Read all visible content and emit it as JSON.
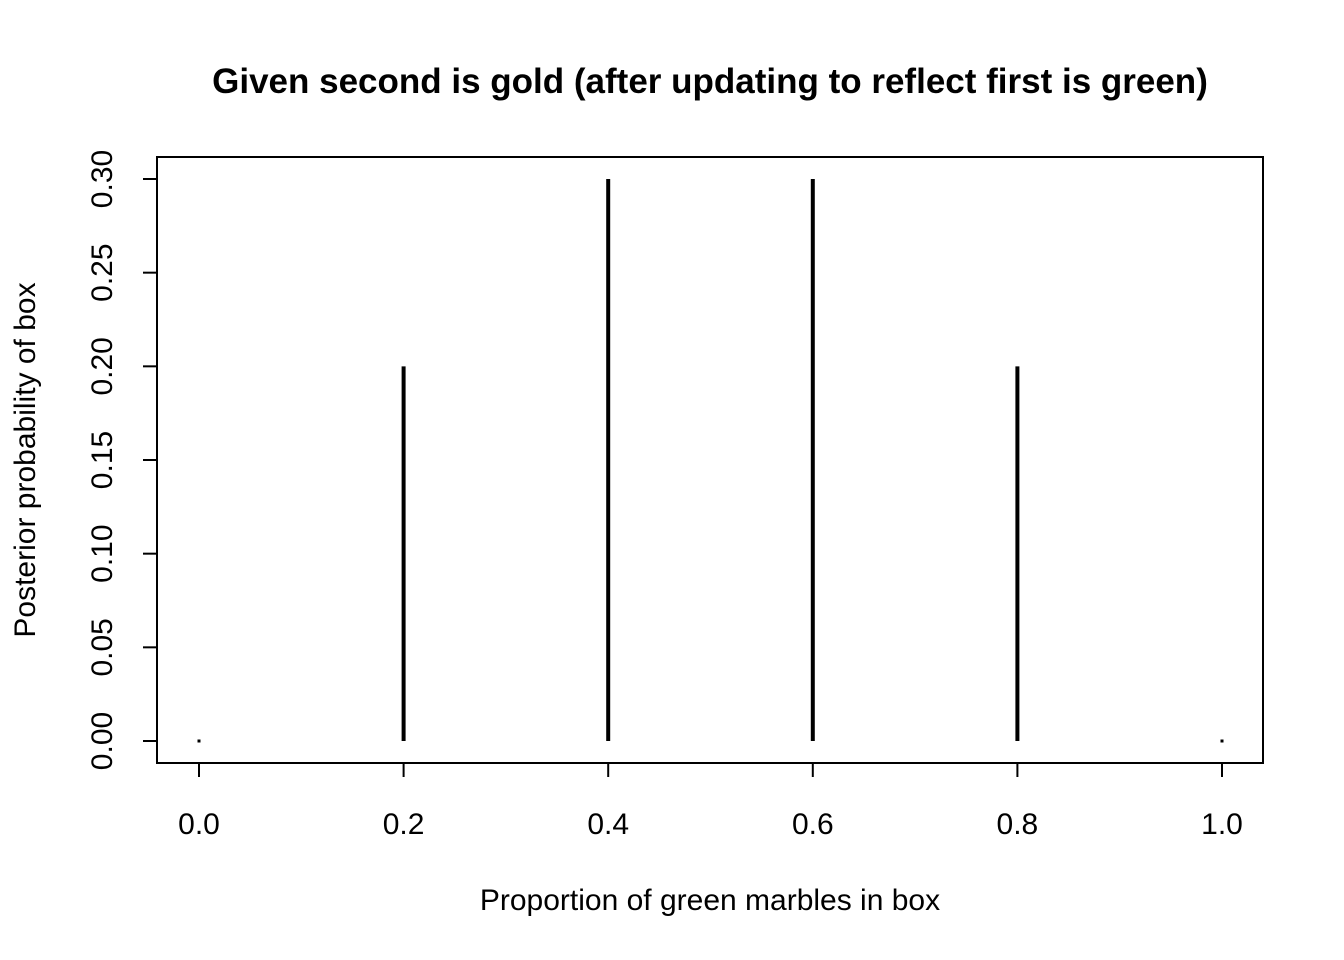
{
  "chart_data": {
    "type": "bar",
    "style": "histogram-spikes",
    "title": "Given second is gold (after updating to reflect first is green)",
    "xlabel": "Proportion of green marbles in box",
    "ylabel": "Posterior probability of box",
    "x": [
      0.0,
      0.2,
      0.4,
      0.6,
      0.8,
      1.0
    ],
    "values": [
      0.0,
      0.2,
      0.3,
      0.3,
      0.2,
      0.0
    ],
    "xlim": [
      0.0,
      1.0
    ],
    "ylim": [
      0.0,
      0.3
    ],
    "x_ticks": [
      "0.0",
      "0.2",
      "0.4",
      "0.6",
      "0.8",
      "1.0"
    ],
    "y_ticks": [
      "0.00",
      "0.05",
      "0.10",
      "0.15",
      "0.20",
      "0.25",
      "0.30"
    ],
    "grid": false,
    "legend": "none",
    "color": "#000000"
  }
}
